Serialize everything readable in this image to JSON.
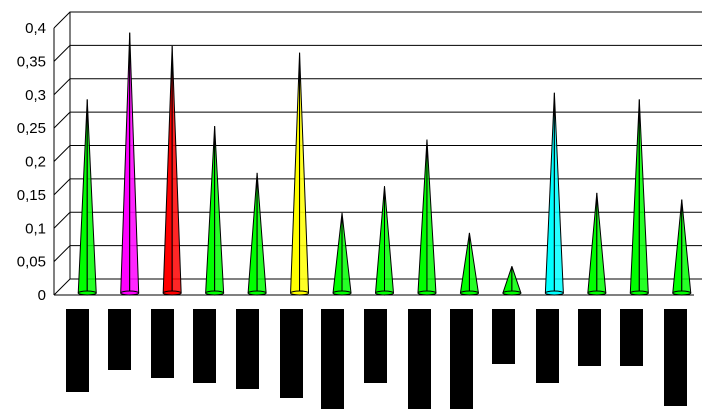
{
  "chart_data": {
    "type": "bar",
    "title": "",
    "xlabel": "",
    "ylabel": "",
    "ylim": [
      0,
      0.4
    ],
    "y_ticks": [
      "0",
      "0,05",
      "0,1",
      "0,15",
      "0,2",
      "0,25",
      "0,3",
      "0,35",
      "0,4"
    ],
    "grid": true,
    "legend": "none",
    "bar_shape": "3d-cone",
    "x_tick_labels": "obscured",
    "values": [
      0.29,
      0.39,
      0.37,
      0.25,
      0.18,
      0.36,
      0.12,
      0.16,
      0.23,
      0.09,
      0.04,
      0.3,
      0.15,
      0.29,
      0.14
    ],
    "colors": [
      "#00ff00",
      "#ff00ff",
      "#ff0000",
      "#00ff00",
      "#00ff00",
      "#ffff00",
      "#00ff00",
      "#00ff00",
      "#00ff00",
      "#00ff00",
      "#00ff00",
      "#00ffff",
      "#00ff00",
      "#00ff00",
      "#00ff00"
    ]
  }
}
